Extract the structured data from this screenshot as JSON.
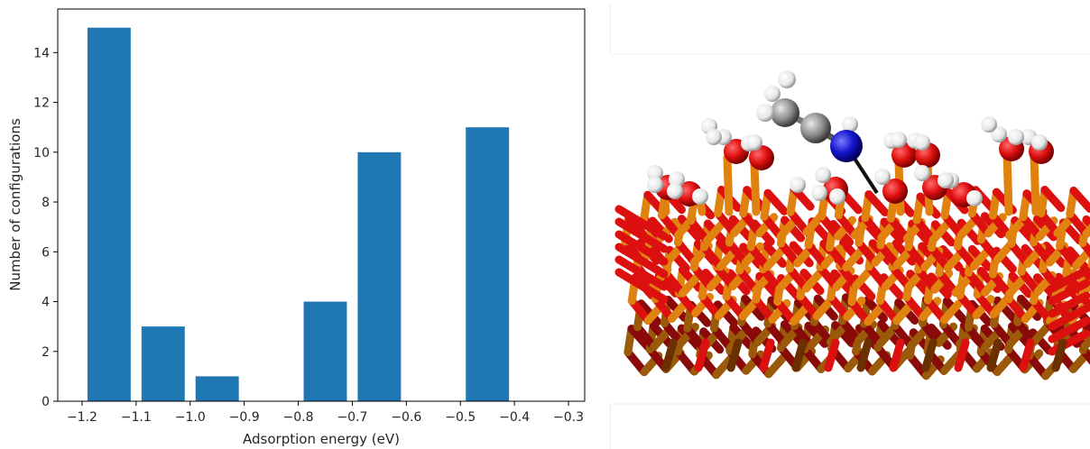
{
  "chart_data": {
    "type": "bar",
    "xlabel": "Adsorption energy (eV)",
    "ylabel": "Number of configurations",
    "xlim": [
      -1.245,
      -0.27
    ],
    "ylim": [
      0,
      15.75
    ],
    "x_ticks": [
      -1.2,
      -1.1,
      -1.0,
      -0.9,
      -0.8,
      -0.7,
      -0.6,
      -0.5,
      -0.4,
      -0.3
    ],
    "x_tick_labels": [
      "−1.2",
      "−1.1",
      "−1.0",
      "−0.9",
      "−0.8",
      "−0.7",
      "−0.6",
      "−0.5",
      "−0.4",
      "−0.3"
    ],
    "y_ticks": [
      0,
      2,
      4,
      6,
      8,
      10,
      12,
      14
    ],
    "y_tick_labels": [
      "0",
      "2",
      "4",
      "6",
      "8",
      "10",
      "12",
      "14"
    ],
    "bar_width_ev": 0.08,
    "bars": [
      {
        "x": -1.15,
        "value": 15
      },
      {
        "x": -1.05,
        "value": 3
      },
      {
        "x": -0.95,
        "value": 1
      },
      {
        "x": -0.75,
        "value": 4
      },
      {
        "x": -0.65,
        "value": 10
      },
      {
        "x": -0.45,
        "value": 11
      }
    ],
    "bar_color": "#1f77b4",
    "grid": false
  },
  "render_image": {
    "description_icon": "molecular-structure-render",
    "colors": {
      "metal": "#e0820f",
      "oxygen": "#dd1010",
      "hydrogen": "#ffffff",
      "carbon": "#8a8a8a",
      "nitrogen": "#1010cc"
    }
  }
}
